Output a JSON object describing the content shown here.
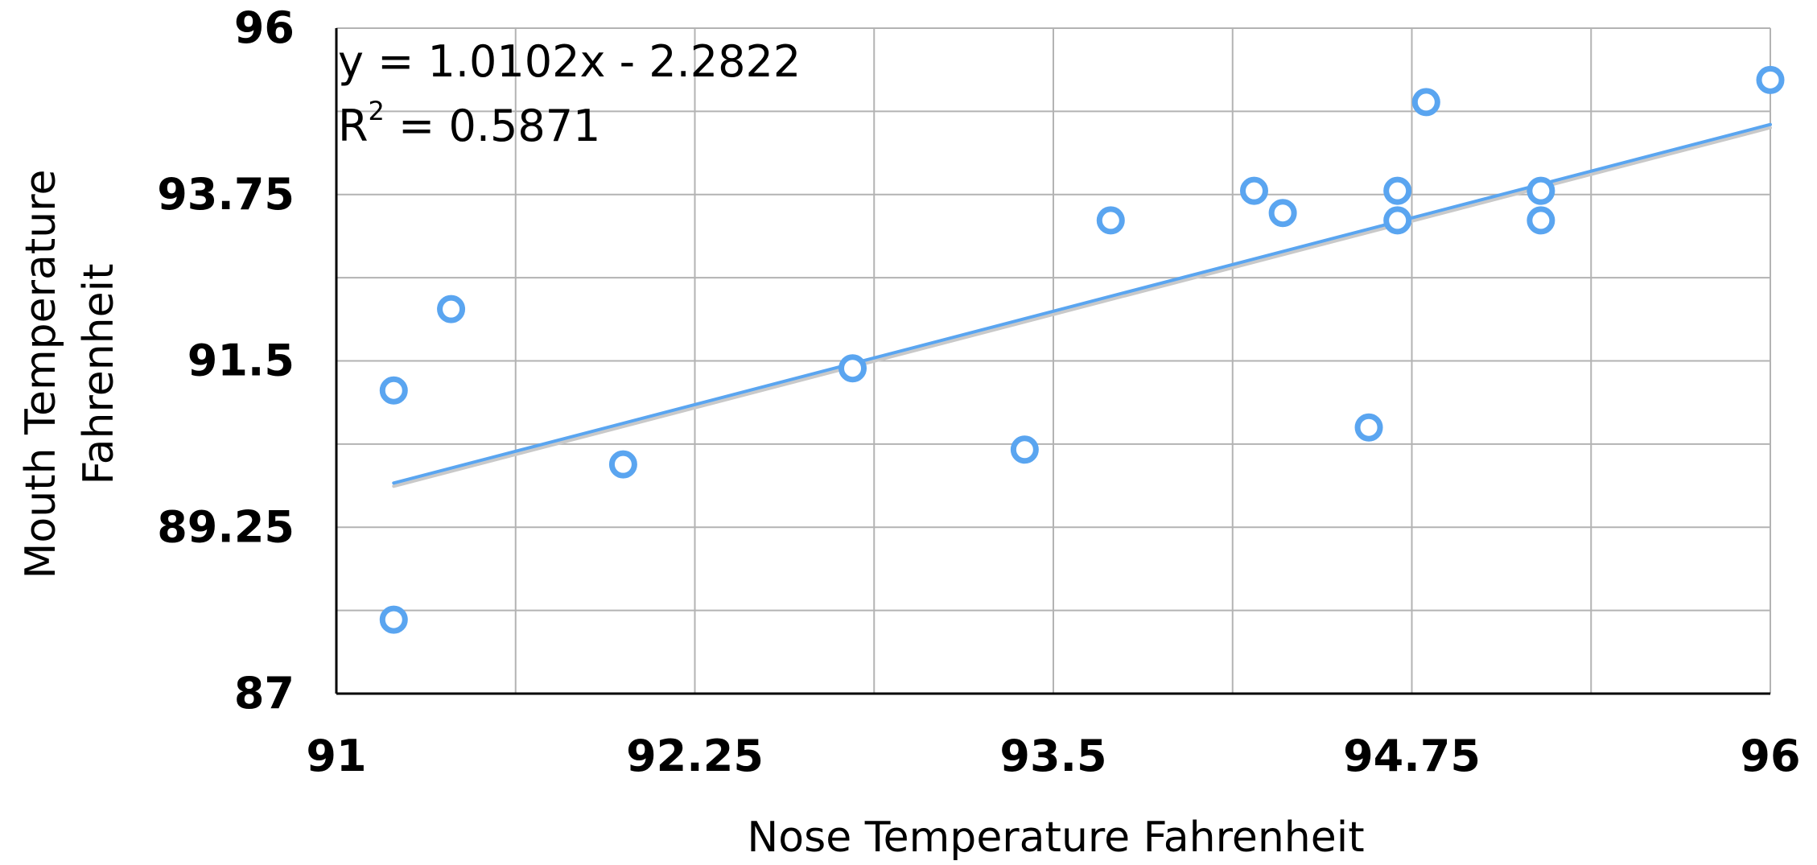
{
  "chart_data": {
    "type": "scatter",
    "title": "",
    "xlabel": "Nose Temperature Fahrenheit",
    "ylabel_lines": [
      "Mouth Temperature",
      "Fahrenheit"
    ],
    "xlim": [
      91,
      96
    ],
    "ylim": [
      87,
      96
    ],
    "x_ticks": [
      91,
      92.25,
      93.5,
      94.75,
      96
    ],
    "x_tick_labels": [
      "91",
      "92.25",
      "93.5",
      "94.75",
      "96"
    ],
    "x_minor_gridlines": [
      91.625,
      92.875,
      94.125,
      95.375
    ],
    "y_ticks": [
      87,
      89.25,
      91.5,
      93.75,
      96
    ],
    "y_tick_labels": [
      "87",
      "89.25",
      "91.5",
      "93.75",
      "96"
    ],
    "y_minor_gridlines": [
      88.125,
      90.375,
      92.625,
      94.875
    ],
    "grid": true,
    "legend": "none",
    "series": [
      {
        "points": [
          {
            "x": 91.2,
            "y": 88.0
          },
          {
            "x": 91.2,
            "y": 91.1
          },
          {
            "x": 91.4,
            "y": 92.2
          },
          {
            "x": 92.0,
            "y": 90.1
          },
          {
            "x": 92.8,
            "y": 91.4
          },
          {
            "x": 93.4,
            "y": 90.3
          },
          {
            "x": 93.7,
            "y": 93.4
          },
          {
            "x": 94.2,
            "y": 93.8
          },
          {
            "x": 94.3,
            "y": 93.5
          },
          {
            "x": 94.6,
            "y": 90.6
          },
          {
            "x": 94.7,
            "y": 93.8
          },
          {
            "x": 94.7,
            "y": 93.4
          },
          {
            "x": 94.8,
            "y": 95.0
          },
          {
            "x": 95.2,
            "y": 93.8
          },
          {
            "x": 95.2,
            "y": 93.4
          },
          {
            "x": 96.0,
            "y": 95.3
          }
        ]
      }
    ],
    "trendline": {
      "slope": 1.0102,
      "intercept": -2.2822,
      "x_range": [
        91.2,
        96.0
      ]
    },
    "annotations": {
      "equation": "y = 1.0102x - 2.2822",
      "r_squared_prefix": "R",
      "r_squared_sup": "2",
      "r_squared_value": " = 0.5871"
    },
    "colors": {
      "marker": "#5AA5F0",
      "trendline": "#5AA5F0",
      "grid": "#B3B3B3",
      "axis": "#000000"
    }
  }
}
